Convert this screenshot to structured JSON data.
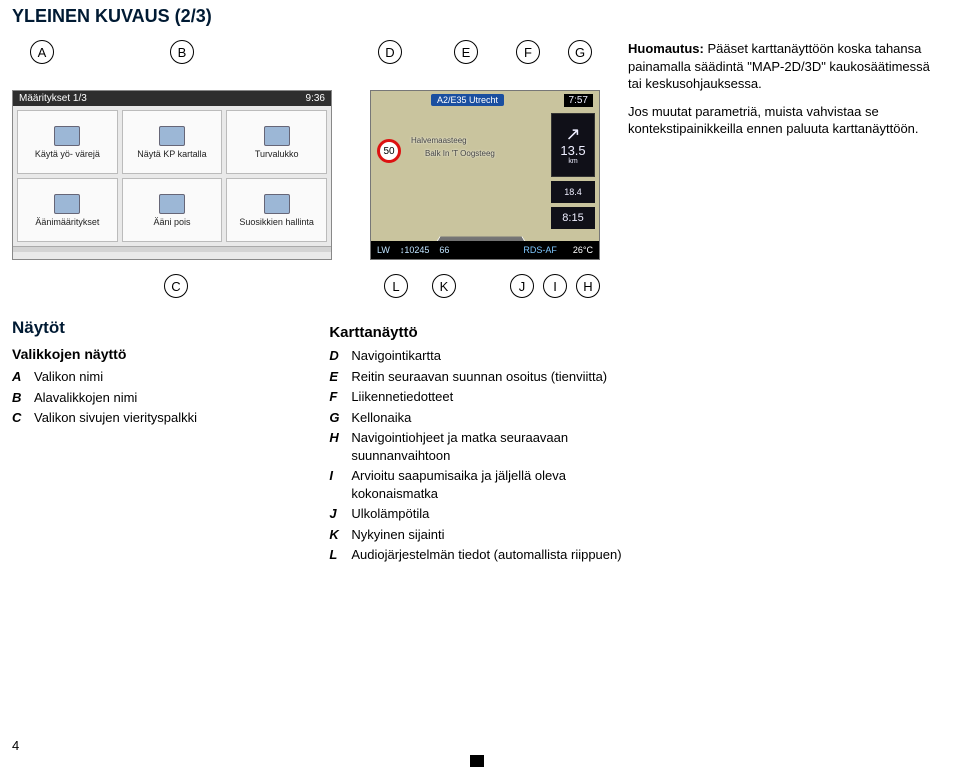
{
  "title": "YLEINEN KUVAUS (2/3)",
  "bubbles": {
    "A": "A",
    "B": "B",
    "C": "C",
    "D": "D",
    "E": "E",
    "F": "F",
    "G": "G",
    "H": "H",
    "I": "I",
    "J": "J",
    "K": "K",
    "L": "L"
  },
  "settings_shot": {
    "header_left": "Määritykset 1/3",
    "header_right": "9:36",
    "cells": [
      "Käytä yö-\nvärejä",
      "Näytä KP kartalla",
      "Turvalukko",
      "Äänimääritykset",
      "Ääni pois",
      "Suosikkien hallinta"
    ]
  },
  "nav_shot": {
    "sign": "A2/E35 Utrecht",
    "clock": "7:57",
    "distance": "13.5",
    "distance_unit": "km",
    "sub": "18.4",
    "eta": "8:15",
    "speed_limit": "50",
    "street1": "Halvemaasteeg",
    "street2": "Balk In 'T Oogsteeg",
    "bottom_band": "LW",
    "bottom_freq": "↕10245",
    "bottom_ch": "66",
    "bottom_rds": "RDS-AF",
    "bottom_temp": "26°C"
  },
  "notice": {
    "p1_lead": "Huomautus:",
    "p1": " Pääset karttanäyttöön koska tahansa painamalla säädintä \"MAP-2D/3D\" kaukosäätimessä tai keskusohjauksessa.",
    "p2": "Jos muutat parametriä, muista vahvistaa se kontekstipainikkeilla ennen paluuta karttanäyttöön."
  },
  "left_col": {
    "h2": "Näytöt",
    "h3": "Valikkojen näyttö",
    "items": [
      {
        "letter": "A",
        "text": "Valikon nimi"
      },
      {
        "letter": "B",
        "text": "Alavalikkojen nimi"
      },
      {
        "letter": "C",
        "text": "Valikon sivujen vierityspalkki"
      }
    ]
  },
  "mid_col": {
    "h3": "Karttanäyttö",
    "items": [
      {
        "letter": "D",
        "text": "Navigointikartta"
      },
      {
        "letter": "E",
        "text": "Reitin seuraavan suunnan osoitus (tienviitta)"
      },
      {
        "letter": "F",
        "text": "Liikennetiedotteet"
      },
      {
        "letter": "G",
        "text": "Kellonaika"
      },
      {
        "letter": "H",
        "text": "Navigointiohjeet ja matka seuraavaan suunnanvaihtoon"
      },
      {
        "letter": "I",
        "text": "Arvioitu saapumisaika ja jäljellä oleva kokonaismatka"
      },
      {
        "letter": "J",
        "text": "Ulkolämpötila"
      },
      {
        "letter": "K",
        "text": "Nykyinen sijainti"
      },
      {
        "letter": "L",
        "text": "Audiojärjestelmän tiedot (automallista riippuen)"
      }
    ]
  },
  "page_number": "4"
}
